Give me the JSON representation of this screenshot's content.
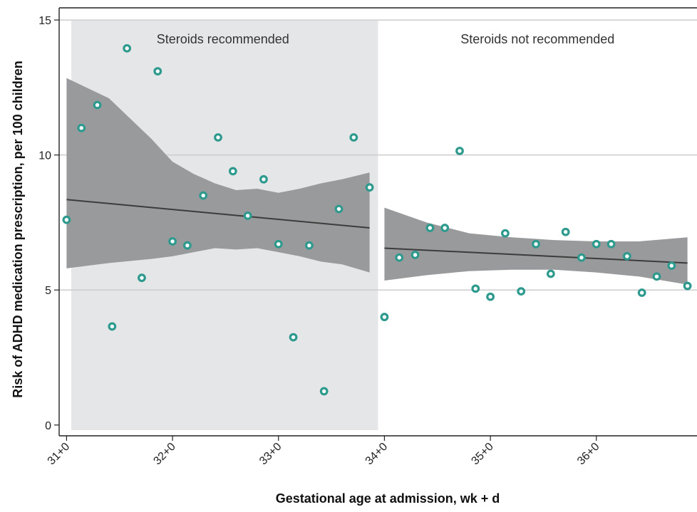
{
  "chart_data": {
    "type": "scatter",
    "title": "",
    "xlabel": "Gestational age at admission, wk + d",
    "ylabel": "Risk of ADHD medication prescription, per 100 children",
    "xlim": [
      30.93,
      36.95
    ],
    "ylim": [
      -0.4,
      15.45
    ],
    "x_ticks": [
      {
        "value": 31,
        "label": "31+0"
      },
      {
        "value": 32,
        "label": "32+0"
      },
      {
        "value": 33,
        "label": "33+0"
      },
      {
        "value": 34,
        "label": "34+0"
      },
      {
        "value": 35,
        "label": "35+0"
      },
      {
        "value": 36,
        "label": "36+0"
      }
    ],
    "y_ticks": [
      {
        "value": 0,
        "label": "0"
      },
      {
        "value": 5,
        "label": "5"
      },
      {
        "value": 10,
        "label": "10"
      },
      {
        "value": 15,
        "label": "15"
      }
    ],
    "grid": true,
    "regions": [
      {
        "label": "Steroids recommended",
        "x_start": 30.93,
        "x_end": 33.94,
        "shaded": true,
        "color": "#e5e6e8"
      },
      {
        "label": "Steroids not recommended",
        "x_start": 33.94,
        "x_end": 36.95,
        "shaded": false,
        "color": "#ffffff"
      }
    ],
    "points": [
      {
        "x": 31.0,
        "y": 7.6
      },
      {
        "x": 31.14,
        "y": 11.0
      },
      {
        "x": 31.29,
        "y": 11.85
      },
      {
        "x": 31.43,
        "y": 3.65
      },
      {
        "x": 31.57,
        "y": 13.95
      },
      {
        "x": 31.71,
        "y": 5.45
      },
      {
        "x": 31.86,
        "y": 13.1
      },
      {
        "x": 32.0,
        "y": 6.8
      },
      {
        "x": 32.14,
        "y": 6.65
      },
      {
        "x": 32.29,
        "y": 8.5
      },
      {
        "x": 32.43,
        "y": 10.65
      },
      {
        "x": 32.57,
        "y": 9.4
      },
      {
        "x": 32.71,
        "y": 7.75
      },
      {
        "x": 32.86,
        "y": 9.1
      },
      {
        "x": 33.0,
        "y": 6.7
      },
      {
        "x": 33.14,
        "y": 3.25
      },
      {
        "x": 33.29,
        "y": 6.65
      },
      {
        "x": 33.43,
        "y": 1.25
      },
      {
        "x": 33.57,
        "y": 8.0
      },
      {
        "x": 33.71,
        "y": 10.65
      },
      {
        "x": 33.86,
        "y": 8.8
      },
      {
        "x": 34.0,
        "y": 4.0
      },
      {
        "x": 34.14,
        "y": 6.2
      },
      {
        "x": 34.29,
        "y": 6.3
      },
      {
        "x": 34.43,
        "y": 7.3
      },
      {
        "x": 34.57,
        "y": 7.3
      },
      {
        "x": 34.71,
        "y": 10.15
      },
      {
        "x": 34.86,
        "y": 5.05
      },
      {
        "x": 35.0,
        "y": 4.75
      },
      {
        "x": 35.14,
        "y": 7.1
      },
      {
        "x": 35.29,
        "y": 4.95
      },
      {
        "x": 35.43,
        "y": 6.7
      },
      {
        "x": 35.57,
        "y": 5.6
      },
      {
        "x": 35.71,
        "y": 7.15
      },
      {
        "x": 35.86,
        "y": 6.2
      },
      {
        "x": 36.0,
        "y": 6.7
      },
      {
        "x": 36.14,
        "y": 6.7
      },
      {
        "x": 36.29,
        "y": 6.25
      },
      {
        "x": 36.43,
        "y": 4.9
      },
      {
        "x": 36.57,
        "y": 5.5
      },
      {
        "x": 36.71,
        "y": 5.9
      },
      {
        "x": 36.86,
        "y": 5.15
      }
    ],
    "fits": [
      {
        "x": [
          31.0,
          33.86
        ],
        "y": [
          8.35,
          7.3
        ],
        "ci_x": [
          31.0,
          31.4,
          31.8,
          32.0,
          32.2,
          32.4,
          32.6,
          32.8,
          33.0,
          33.2,
          33.4,
          33.6,
          33.86
        ],
        "ci_upper": [
          12.85,
          12.1,
          10.6,
          9.75,
          9.3,
          8.95,
          8.7,
          8.75,
          8.6,
          8.75,
          8.95,
          9.1,
          9.35
        ],
        "ci_lower": [
          5.8,
          6.0,
          6.15,
          6.25,
          6.4,
          6.55,
          6.5,
          6.55,
          6.4,
          6.25,
          6.05,
          5.95,
          5.65
        ]
      },
      {
        "x": [
          34.0,
          36.86
        ],
        "y": [
          6.55,
          6.0
        ],
        "ci_x": [
          34.0,
          34.4,
          34.8,
          35.2,
          35.6,
          36.0,
          36.4,
          36.86
        ],
        "ci_upper": [
          8.05,
          7.5,
          7.1,
          6.95,
          6.85,
          6.8,
          6.8,
          6.95
        ],
        "ci_lower": [
          5.35,
          5.55,
          5.7,
          5.75,
          5.75,
          5.65,
          5.5,
          5.2
        ]
      }
    ],
    "colors": {
      "point": "#2e9a8e",
      "ci_band": "#999a9c",
      "fit_line": "#3c3c3c",
      "gridline": "#cccccc",
      "axis": "#222222"
    }
  }
}
